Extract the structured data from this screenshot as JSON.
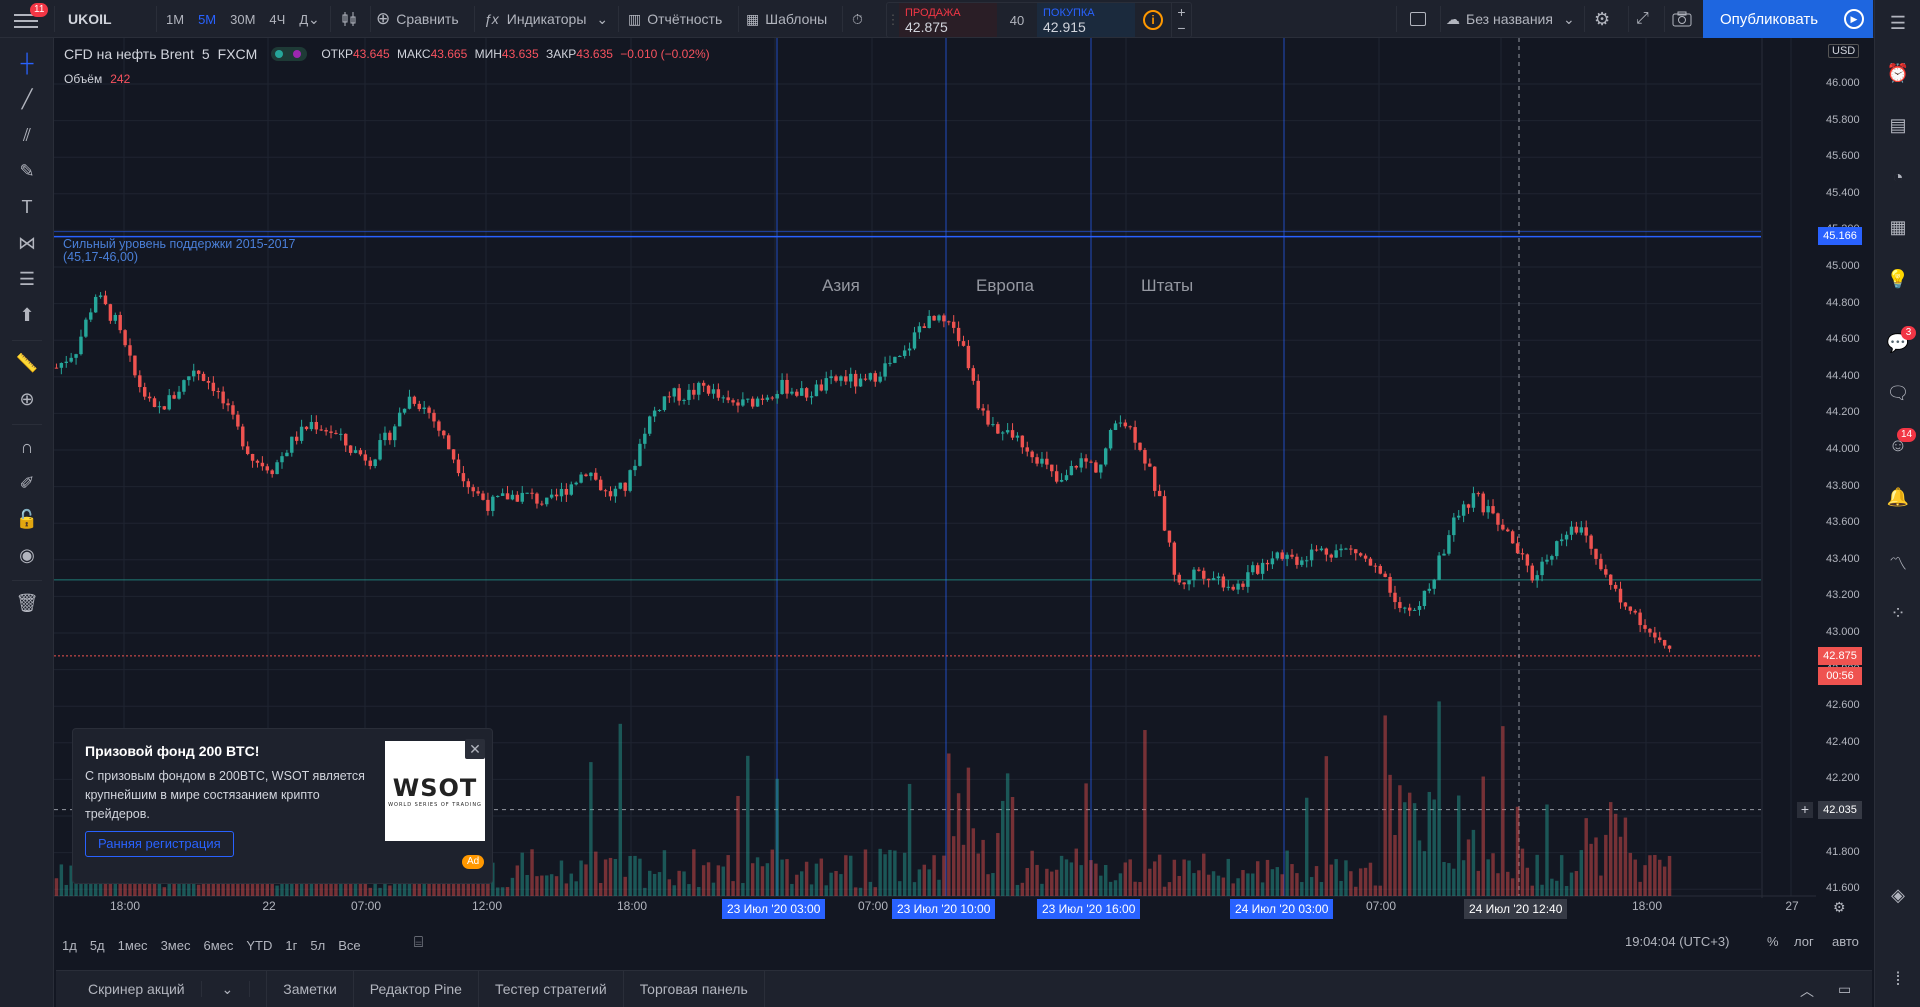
{
  "header": {
    "symbol": "UKOIL",
    "timeframes": [
      "1М",
      "5М",
      "30М",
      "4Ч",
      "Д"
    ],
    "active_timeframe": "5М",
    "compare": "Сравнить",
    "indicators": "Индикаторы",
    "reports": "Отчётность",
    "templates": "Шаблоны",
    "layout_name": "Без названия",
    "publish": "Опубликовать",
    "menu_badge": "11"
  },
  "trade": {
    "sell_label": "ПРОДАЖА",
    "sell_price": "42.875",
    "spread": "40",
    "buy_label": "ПОКУПКА",
    "buy_price": "42.915"
  },
  "legend": {
    "title": "CFD на нефть Brent",
    "interval": "5",
    "exchange": "FXCM",
    "open_label": "ОТКР",
    "open": "43.645",
    "high_label": "МАКС",
    "high": "43.665",
    "low_label": "МИН",
    "low": "43.635",
    "close_label": "ЗАКР",
    "close": "43.635",
    "change": "−0.010 (−0.02%)",
    "volume_label": "Объём",
    "volume": "242"
  },
  "annotations": {
    "support_line1": "Сильный уровень поддержки 2015-2017",
    "support_line2": "(45,17-46,00)",
    "asia": "Азия",
    "europe": "Европа",
    "usa": "Штаты"
  },
  "price_axis": {
    "currency": "USD",
    "ticks": [
      "46.000",
      "45.800",
      "45.600",
      "45.400",
      "45.200",
      "45.000",
      "44.800",
      "44.600",
      "44.400",
      "44.200",
      "44.000",
      "43.800",
      "43.600",
      "43.400",
      "43.200",
      "43.000",
      "42.800",
      "42.600",
      "42.400",
      "42.200",
      "42.000",
      "41.800",
      "41.600"
    ],
    "top_cut": "46.200",
    "support_tag": "45.166",
    "last_price_tag": "42.875",
    "countdown_tag": "00:56",
    "cursor_tag": "42.035"
  },
  "time_axis": {
    "labels": [
      "18:00",
      "22",
      "07:00",
      "12:00",
      "18:00",
      "07:00",
      "07:00",
      "18:00",
      "27"
    ],
    "highlights": [
      "23 Июл '20   03:00",
      "23 Июл '20   10:00",
      "23 Июл '20   16:00",
      "24 Июл '20   03:00"
    ],
    "cursor": "24 Июл '20   12:40"
  },
  "bottom": {
    "ranges": [
      "1д",
      "5д",
      "1мес",
      "3мес",
      "6мес",
      "YTD",
      "1г",
      "5л",
      "Все"
    ],
    "clock": "19:04:04 (UTC+3)",
    "percent": "%",
    "log": "лог",
    "auto": "авто"
  },
  "panels": [
    "Скринер акций",
    "Заметки",
    "Редактор Pine",
    "Тестер стратегий",
    "Торговая панель"
  ],
  "ad": {
    "title": "Призовой фонд 200 BTC!",
    "text": "С призовым фондом в 200BTC, WSOT является крупнейшим в мире состязанием крипто трейдеров.",
    "button": "Ранняя регистрация",
    "logo": "WSOT",
    "logo_sub": "WORLD SERIES OF TRADING",
    "tag": "Ad"
  },
  "right_badges": {
    "chat": "3",
    "ideas": "14"
  },
  "colors": {
    "up": "#26a69a",
    "down": "#ef5350",
    "accent": "#2962ff",
    "publish": "#1e66e0",
    "bg": "#131722",
    "panel": "#1e222d"
  },
  "chart_data": {
    "type": "candlestick",
    "ylim": [
      41.6,
      46.2
    ],
    "support_level": 45.166,
    "last_price": 42.875,
    "close_path": [
      44.45,
      44.55,
      44.85,
      44.7,
      44.4,
      44.2,
      44.3,
      44.45,
      44.35,
      44.15,
      43.95,
      43.9,
      44.05,
      44.15,
      44.1,
      44.0,
      43.95,
      44.1,
      44.3,
      44.2,
      44.0,
      43.8,
      43.7,
      43.75,
      43.75,
      43.7,
      43.8,
      43.9,
      43.75,
      43.8,
      44.15,
      44.3,
      44.3,
      44.35,
      44.25,
      44.25,
      44.3,
      44.35,
      44.3,
      44.35,
      44.4,
      44.35,
      44.45,
      44.5,
      44.7,
      44.7,
      44.6,
      44.2,
      44.1,
      44.05,
      43.95,
      43.8,
      43.95,
      43.9,
      44.2,
      44.05,
      43.75,
      43.25,
      43.35,
      43.3,
      43.25,
      43.35,
      43.45,
      43.4,
      43.45,
      43.45,
      43.45,
      43.35,
      43.2,
      43.1,
      43.3,
      43.6,
      43.75,
      43.65,
      43.5,
      43.3,
      43.45,
      43.6,
      43.5,
      43.25,
      43.15,
      43.0,
      42.88
    ]
  }
}
